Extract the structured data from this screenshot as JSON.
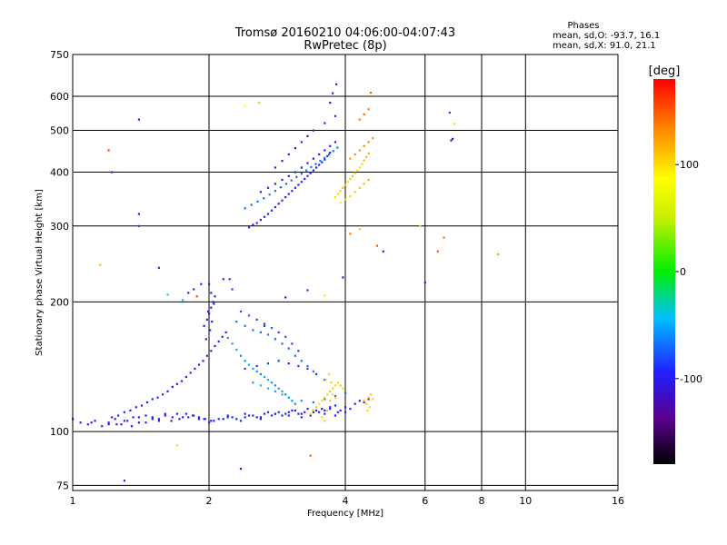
{
  "chart_data": {
    "type": "scatter",
    "title": "Tromsø 20160210 04:06:00-04:07:43",
    "subtitle": "RwPretec (8p)",
    "xlabel": "Frequency [MHz]",
    "ylabel": "Stationary phase Virtual Height [km]",
    "xscale": "log",
    "yscale": "log",
    "xlim": [
      1,
      16
    ],
    "ylim": [
      73,
      750
    ],
    "x_ticks": [
      1,
      2,
      4,
      6,
      8,
      10,
      16
    ],
    "x_tick_labels": [
      "1",
      "2",
      "4",
      "6",
      "8",
      "10",
      "16"
    ],
    "y_ticks": [
      75,
      100,
      200,
      300,
      400,
      500,
      600,
      750
    ],
    "y_tick_labels": [
      "75",
      "100",
      "200",
      "300",
      "400",
      "500",
      "600",
      "750"
    ],
    "grid": true,
    "info_title": "Phases",
    "info_lines": [
      "mean, sd,O: -93.7, 16.1",
      "mean, sd,X:  91.0, 21.1"
    ],
    "colorbar": {
      "label": "[deg]",
      "range": [
        -180,
        180
      ],
      "ticks": [
        100,
        0,
        -100
      ],
      "tick_labels": [
        "100",
        "0",
        "-100"
      ],
      "colormap": "rainbow"
    },
    "series": [
      {
        "x": [
          1.0,
          1.04,
          1.08,
          1.12,
          1.16,
          1.2,
          1.24,
          1.28,
          1.32,
          1.36,
          1.4,
          1.45,
          1.5,
          1.55,
          1.6,
          1.66,
          1.72,
          1.78,
          1.84,
          1.9,
          1.96,
          2.02,
          2.1,
          2.2,
          2.3,
          2.4,
          2.5,
          2.6,
          2.7,
          2.8,
          2.9,
          3.0,
          3.1,
          3.2,
          3.3,
          3.4,
          3.5,
          3.6,
          3.7,
          3.8,
          3.9,
          4.0,
          4.1,
          4.2,
          4.3,
          4.4,
          4.5,
          1.1,
          1.2,
          1.3,
          1.4,
          1.5,
          1.6,
          1.7,
          1.8,
          1.9,
          2.0,
          2.2,
          2.4,
          2.6,
          2.8,
          3.0,
          3.2,
          3.4,
          3.6,
          3.8,
          4.0,
          1.25,
          1.35,
          1.45,
          1.55,
          1.65,
          1.75,
          1.85,
          1.95,
          2.05,
          2.15,
          2.25,
          2.35,
          2.45,
          2.55,
          2.65,
          2.75,
          2.85,
          2.95,
          3.05,
          3.15,
          3.25,
          3.35,
          3.45,
          3.55,
          3.7,
          3.85
        ],
        "y": [
          107,
          105,
          104,
          106,
          103,
          105,
          107,
          104,
          106,
          108,
          105,
          109,
          108,
          106,
          110,
          108,
          107,
          110,
          109,
          108,
          107,
          106,
          107,
          108,
          107,
          110,
          109,
          108,
          111,
          110,
          109,
          111,
          112,
          110,
          113,
          112,
          111,
          112,
          113,
          115,
          112,
          114,
          113,
          116,
          118,
          117,
          119,
          105,
          104,
          106,
          108,
          107,
          109,
          110,
          108,
          107,
          105,
          109,
          108,
          107,
          110,
          109,
          108,
          111,
          110,
          109,
          111,
          104,
          103,
          105,
          107,
          106,
          108,
          109,
          107,
          106,
          107,
          108,
          106,
          109,
          108,
          110,
          109,
          111,
          110,
          112,
          110,
          111,
          109,
          112,
          113,
          114,
          111
        ],
        "phase": [
          -95,
          -96,
          -94,
          -97,
          -93,
          -95,
          -96,
          -94,
          -92,
          -98,
          -95,
          -93,
          -96,
          -94,
          -95,
          -97,
          -93,
          -94,
          -96,
          -95,
          -92,
          -98,
          -96,
          -94,
          -95,
          -93,
          -97,
          -95,
          -94,
          -96,
          -93,
          -95,
          -94,
          -96,
          -92,
          -95,
          -97,
          -94,
          -96,
          -95,
          -93,
          -96,
          -94,
          -95,
          -97,
          -93,
          -95,
          -92,
          -96,
          -94,
          -95,
          -93,
          -97,
          -94,
          -96,
          -95,
          -93,
          -94,
          -96,
          -95,
          -97,
          -93,
          -94,
          -96,
          -95,
          -92,
          -94,
          -95,
          -93,
          -96,
          -94,
          -97,
          -95,
          -93,
          -94,
          -96,
          -95,
          -93,
          -97,
          -94,
          -96,
          -95,
          -93,
          -94,
          -96,
          -95,
          -97,
          -93,
          -94,
          -95,
          -96,
          -93,
          -95
        ]
      },
      {
        "x": [
          1.22,
          1.26,
          1.3,
          1.34,
          1.38,
          1.42,
          1.46,
          1.5,
          1.54,
          1.58,
          1.62,
          1.66,
          1.7,
          1.74,
          1.78,
          1.82,
          1.86,
          1.9,
          1.94,
          1.98,
          2.02,
          2.06,
          2.1,
          2.14,
          2.18,
          1.95,
          1.98,
          2.0,
          2.02,
          2.04,
          2.06,
          1.97,
          2.01,
          2.03,
          1.99,
          2.05,
          2.02,
          2.0
        ],
        "y": [
          108,
          109,
          111,
          112,
          114,
          115,
          117,
          119,
          120,
          122,
          124,
          127,
          129,
          131,
          134,
          137,
          140,
          143,
          146,
          150,
          154,
          158,
          162,
          166,
          170,
          176,
          182,
          188,
          194,
          200,
          206,
          164,
          172,
          180,
          190,
          198,
          210,
          220
        ],
        "phase": [
          -90,
          -92,
          -94,
          -93,
          -95,
          -91,
          -96,
          -94,
          -92,
          -95,
          -93,
          -97,
          -94,
          -92,
          -95,
          -96,
          -93,
          -94,
          -95,
          -92,
          -96,
          -94,
          -93,
          -95,
          -97,
          -94,
          -92,
          -95,
          -96,
          -93,
          -94,
          -95,
          -93,
          -96,
          -94,
          -92,
          -95,
          -93
        ]
      },
      {
        "x": [
          2.2,
          2.25,
          2.3,
          2.35,
          2.4,
          2.45,
          2.5,
          2.55,
          2.6,
          2.65,
          2.7,
          2.75,
          2.8,
          2.85,
          2.9,
          2.95,
          3.0,
          3.05,
          3.1,
          2.3,
          2.4,
          2.5,
          2.6,
          2.7,
          2.8,
          2.9,
          3.0,
          3.1,
          3.2,
          3.3,
          3.4,
          2.35,
          2.45,
          2.55,
          2.65,
          2.75,
          2.85,
          2.95,
          3.05,
          3.15,
          2.5,
          2.6,
          2.7,
          2.8,
          2.9,
          3.0,
          3.2,
          3.4,
          3.6,
          3.8,
          4.0,
          2.4,
          2.55,
          2.7,
          2.85,
          3.0,
          3.15,
          3.3,
          3.45,
          3.6
        ],
        "y": [
          165,
          160,
          155,
          150,
          146,
          143,
          140,
          138,
          136,
          134,
          132,
          130,
          128,
          126,
          124,
          122,
          120,
          118,
          116,
          180,
          176,
          172,
          170,
          168,
          164,
          160,
          156,
          150,
          146,
          142,
          138,
          190,
          186,
          182,
          178,
          174,
          170,
          166,
          160,
          154,
          130,
          128,
          126,
          124,
          122,
          120,
          118,
          117,
          119,
          121,
          123,
          140,
          142,
          144,
          146,
          144,
          142,
          140,
          136,
          132
        ],
        "phase": [
          -60,
          -55,
          -50,
          -62,
          -58,
          -48,
          -52,
          -57,
          -61,
          -54,
          -49,
          -56,
          -59,
          -53,
          -51,
          -63,
          -57,
          -55,
          -60,
          -70,
          -66,
          -72,
          -68,
          -64,
          -71,
          -67,
          -73,
          -69,
          -65,
          -70,
          -66,
          -80,
          -76,
          -82,
          -78,
          -74,
          -81,
          -77,
          -83,
          -79,
          -50,
          -45,
          -48,
          -52,
          -46,
          -44,
          -60,
          -66,
          -70,
          -72,
          -74,
          -85,
          -88,
          -84,
          -86,
          -90,
          -87,
          -83,
          -89,
          -85
        ]
      },
      {
        "x": [
          3.35,
          3.4,
          3.45,
          3.5,
          3.55,
          3.6,
          3.65,
          3.7,
          3.75,
          3.8,
          3.85,
          3.9,
          3.95,
          3.55,
          3.6,
          3.65,
          3.7,
          3.75,
          3.8,
          4.4,
          4.45,
          4.5,
          4.55,
          4.6,
          4.48,
          4.52,
          3.62,
          3.68,
          3.72
        ],
        "y": [
          110,
          112,
          114,
          116,
          118,
          120,
          122,
          124,
          126,
          128,
          130,
          128,
          126,
          108,
          106,
          112,
          118,
          122,
          120,
          118,
          116,
          120,
          122,
          119,
          112,
          114,
          132,
          136,
          130
        ],
        "phase": [
          100,
          105,
          110,
          98,
          102,
          108,
          104,
          112,
          106,
          99,
          103,
          109,
          101,
          98,
          104,
          110,
          106,
          102,
          108,
          110,
          104,
          112,
          108,
          106,
          102,
          100,
          106,
          104,
          108
        ]
      },
      {
        "x": [
          2.45,
          2.5,
          2.55,
          2.6,
          2.65,
          2.7,
          2.75,
          2.8,
          2.85,
          2.9,
          2.95,
          3.0,
          3.05,
          3.1,
          3.15,
          3.2,
          3.25,
          3.3,
          3.35,
          3.4,
          3.45,
          3.5,
          3.55,
          3.6,
          3.65,
          3.7,
          2.4,
          2.48,
          2.56,
          2.64,
          2.72,
          2.8,
          2.88,
          2.96,
          3.04,
          3.12,
          3.2,
          3.28,
          3.36,
          3.44,
          3.52,
          3.6,
          3.68,
          3.76,
          3.84,
          2.6,
          2.7,
          2.8,
          2.9,
          3.0,
          3.1,
          3.2,
          3.3,
          3.4,
          3.5,
          3.6,
          3.7,
          3.8,
          2.8,
          2.9,
          3.0,
          3.1,
          3.2,
          3.3,
          3.4,
          3.6,
          3.8,
          3.7,
          3.75,
          3.82
        ],
        "y": [
          298,
          302,
          305,
          310,
          315,
          320,
          326,
          332,
          338,
          344,
          350,
          356,
          362,
          368,
          374,
          380,
          386,
          392,
          398,
          404,
          410,
          416,
          422,
          428,
          436,
          444,
          330,
          336,
          342,
          348,
          355,
          362,
          369,
          376,
          383,
          390,
          397,
          404,
          411,
          418,
          425,
          432,
          440,
          448,
          456,
          360,
          368,
          376,
          384,
          392,
          400,
          410,
          420,
          430,
          440,
          450,
          460,
          470,
          410,
          425,
          440,
          455,
          470,
          485,
          500,
          520,
          540,
          580,
          610,
          640
        ],
        "phase": [
          -95,
          -100,
          -92,
          -98,
          -96,
          -94,
          -99,
          -91,
          -97,
          -95,
          -93,
          -98,
          -96,
          -94,
          -100,
          -92,
          -97,
          -95,
          -93,
          -98,
          -94,
          -96,
          -99,
          -92,
          -95,
          -97,
          -70,
          -72,
          -68,
          -74,
          -66,
          -71,
          -69,
          -73,
          -67,
          -75,
          -70,
          -72,
          -68,
          -74,
          -66,
          -71,
          -69,
          -73,
          -67,
          -100,
          -98,
          -102,
          -96,
          -104,
          -99,
          -101,
          -97,
          -103,
          -98,
          -100,
          -96,
          -102,
          -95,
          -99,
          -97,
          -101,
          -94,
          -100,
          -98,
          -96,
          -102,
          -100,
          -97,
          -99
        ]
      },
      {
        "x": [
          3.8,
          3.85,
          3.9,
          3.95,
          4.0,
          4.05,
          4.1,
          4.15,
          4.2,
          4.25,
          4.3,
          4.35,
          4.4,
          4.45,
          4.5,
          3.9,
          4.0,
          4.1,
          4.2,
          4.3,
          4.4,
          4.5,
          4.1,
          4.2,
          4.3,
          4.4,
          4.5,
          4.6,
          4.3,
          4.4,
          4.5
        ],
        "y": [
          350,
          356,
          362,
          368,
          374,
          380,
          386,
          392,
          398,
          404,
          410,
          418,
          426,
          434,
          442,
          340,
          346,
          352,
          360,
          368,
          376,
          384,
          430,
          440,
          450,
          460,
          470,
          480,
          530,
          545,
          560
        ],
        "phase": [
          100,
          104,
          108,
          112,
          106,
          102,
          110,
          114,
          108,
          104,
          100,
          106,
          112,
          116,
          118,
          96,
          100,
          104,
          108,
          112,
          116,
          120,
          125,
          130,
          128,
          132,
          135,
          130,
          140,
          145,
          138
        ]
      },
      {
        "x": [
          1.4,
          1.2,
          1.22,
          1.4,
          1.4,
          1.55,
          1.62,
          1.75,
          1.8,
          1.85,
          1.88,
          1.92,
          2.15,
          2.22,
          2.25,
          2.4,
          2.58,
          2.65,
          2.95,
          3.3,
          3.6,
          3.95,
          4.1,
          4.3,
          4.55,
          4.7,
          4.85,
          5.85,
          6.0,
          6.4,
          6.6,
          6.8,
          6.85,
          6.9,
          6.95,
          8.7,
          2.35,
          1.7,
          1.3,
          1.15,
          3.35
        ],
        "y": [
          530,
          450,
          400,
          320,
          300,
          240,
          208,
          202,
          210,
          214,
          206,
          220,
          226,
          226,
          214,
          570,
          580,
          176,
          205,
          213,
          207,
          228,
          288,
          295,
          612,
          270,
          262,
          300,
          222,
          262,
          282,
          550,
          474,
          478,
          518,
          258,
          82,
          93,
          77,
          244,
          88
        ],
        "phase": [
          -100,
          160,
          -90,
          -95,
          -80,
          -90,
          -30,
          -35,
          -100,
          -95,
          160,
          -90,
          -100,
          -95,
          -85,
          90,
          40,
          -95,
          -100,
          -90,
          95,
          -100,
          140,
          110,
          150,
          150,
          -100,
          100,
          -100,
          150,
          140,
          -80,
          -120,
          -120,
          100,
          120,
          -110,
          100,
          -90,
          110,
          150
        ]
      }
    ]
  }
}
